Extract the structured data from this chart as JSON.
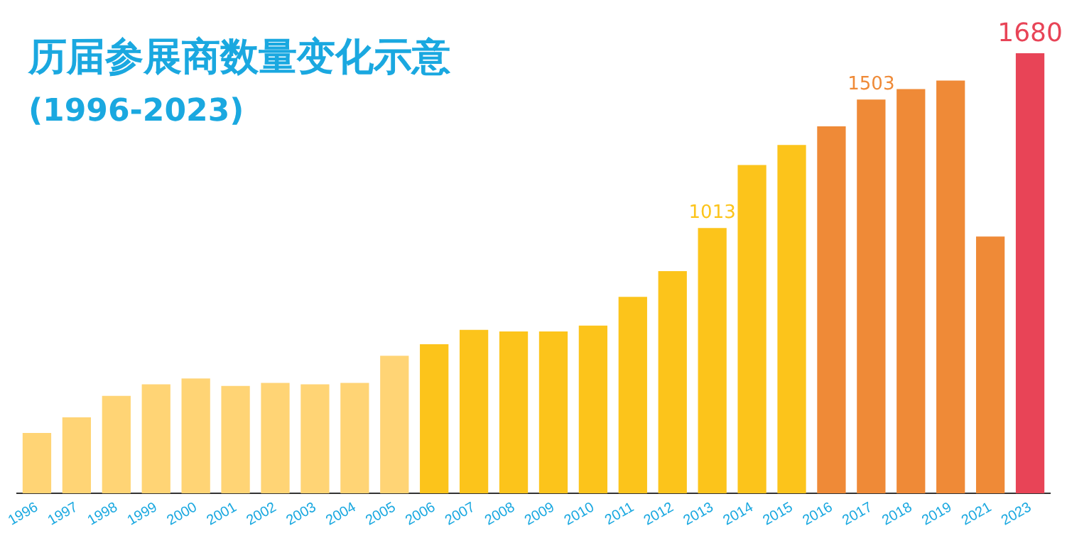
{
  "chart_data": {
    "type": "bar",
    "title": "历届参展商数量变化示意",
    "subtitle": "(1996-2023)",
    "categories": [
      "1996",
      "1997",
      "1998",
      "1999",
      "2000",
      "2001",
      "2002",
      "2003",
      "2004",
      "2005",
      "2006",
      "2007",
      "2008",
      "2009",
      "2010",
      "2011",
      "2012",
      "2013",
      "2014",
      "2015",
      "2016",
      "2017",
      "2018",
      "2019",
      "2021",
      "2023"
    ],
    "values": [
      230,
      290,
      372,
      416,
      438,
      410,
      421,
      416,
      421,
      525,
      569,
      624,
      618,
      618,
      640,
      750,
      848,
      1013,
      1253,
      1330,
      1401,
      1503,
      1543,
      1576,
      980,
      1680
    ],
    "colors": [
      "#ffd475",
      "#ffd475",
      "#ffd475",
      "#ffd475",
      "#ffd475",
      "#ffd475",
      "#ffd475",
      "#ffd475",
      "#ffd475",
      "#ffd475",
      "#fcc41b",
      "#fcc41b",
      "#fcc41b",
      "#fcc41b",
      "#fcc41b",
      "#fcc41b",
      "#fcc41b",
      "#fcc41b",
      "#fcc41b",
      "#fcc41b",
      "#ef8a37",
      "#ef8a37",
      "#ef8a37",
      "#ef8a37",
      "#ef8a37",
      "#e84457"
    ],
    "value_labels": [
      null,
      null,
      null,
      null,
      null,
      null,
      null,
      null,
      null,
      null,
      null,
      null,
      null,
      null,
      null,
      null,
      null,
      "1013",
      null,
      null,
      null,
      "1503",
      null,
      null,
      null,
      "1680"
    ],
    "grid": false,
    "legend": false,
    "tick_labels": "x"
  }
}
